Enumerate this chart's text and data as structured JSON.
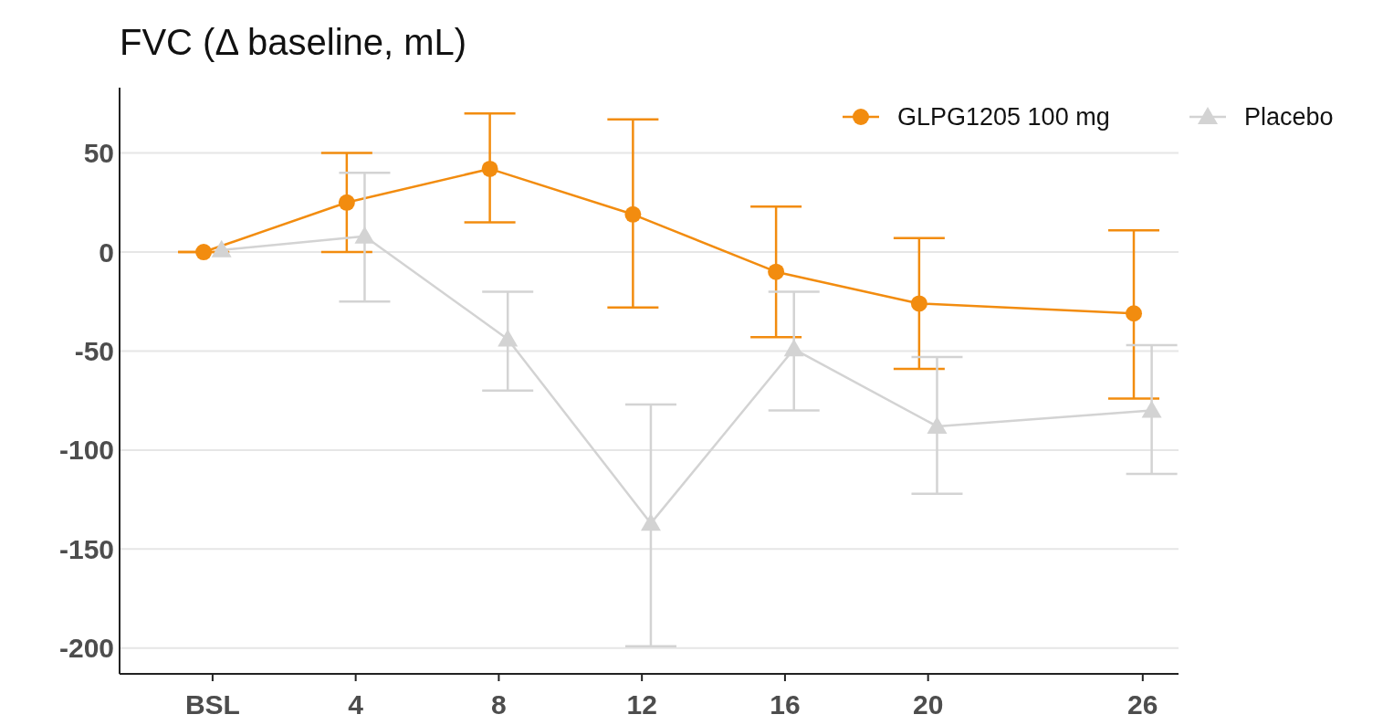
{
  "chart_data": {
    "type": "line",
    "title": "FVC (Δ baseline, mL)",
    "xlim": [
      -2.6,
      27
    ],
    "xticks": [
      {
        "value": 0,
        "label": "BSL"
      },
      4,
      8,
      12,
      16,
      20,
      26
    ],
    "ylim": [
      -213,
      83
    ],
    "yticks": [
      -200,
      -150,
      -100,
      -50,
      0,
      50
    ],
    "grid": "y",
    "legend": "top right",
    "series": [
      {
        "name": "GLPG1205 100 mg",
        "color": "#f28c0f",
        "marker": "circle",
        "x": [
          -0.25,
          3.75,
          7.75,
          11.75,
          15.75,
          19.75,
          25.75
        ],
        "values": [
          0,
          25,
          42,
          19,
          -10,
          -26,
          -31
        ],
        "errors": [
          [
            0,
            0
          ],
          [
            0,
            50
          ],
          [
            15,
            70
          ],
          [
            -28,
            67
          ],
          [
            -43,
            23
          ],
          [
            -59,
            7
          ],
          [
            -74,
            11
          ]
        ]
      },
      {
        "name": "Placebo",
        "color": "#d3d3d3",
        "marker": "triangle",
        "x": [
          0.25,
          4.25,
          8.25,
          12.25,
          16.25,
          20.25,
          26.25
        ],
        "values": [
          1,
          8,
          -44,
          -137,
          -49,
          -88,
          -80
        ],
        "errors": [
          null,
          [
            -25,
            40
          ],
          [
            -70,
            -20
          ],
          [
            -199,
            -77
          ],
          [
            -80,
            -20
          ],
          [
            -122,
            -53
          ],
          [
            -112,
            -47
          ]
        ]
      }
    ]
  }
}
